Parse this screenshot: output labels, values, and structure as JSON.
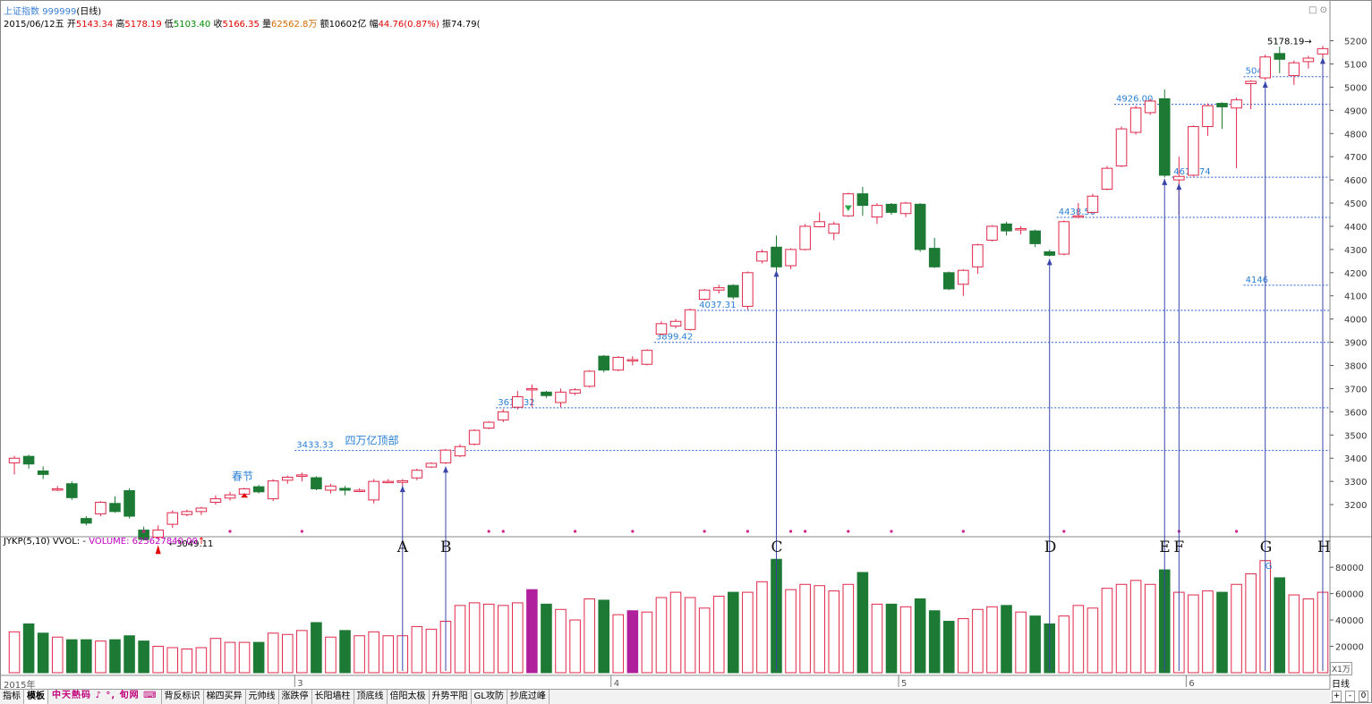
{
  "header": {
    "index_name": "上证指数",
    "index_code": "999999",
    "period_tag": "(日线)",
    "date": "2015/06/12五",
    "open_label": "开",
    "open": "5143.34",
    "high_label": "高",
    "high": "5178.19",
    "low_label": "低",
    "low": "5103.40",
    "close_label": "收",
    "close": "5166.35",
    "vol_label": "量",
    "vol": "62562.8万",
    "amount_label": "额",
    "amount": "10602亿",
    "amp_label": "幅",
    "amp": "44.76(0.87%)",
    "turnover_label": "振",
    "turnover": "74.79("
  },
  "indicator": {
    "name": "JYKP(5,10)",
    "vvol": "VVOL: -",
    "volume_label": "VOLUME:",
    "volume": "625627840.00",
    "unit": "X1万"
  },
  "bottom": {
    "year": "2015年",
    "brand": "中天熱码 ♪ °, 旬网 ⌨",
    "period": "日线",
    "ctrl_plus": "+",
    "ctrl_minus": "-",
    "ctrl_zero": "0",
    "tabs": [
      "指标",
      "模板",
      "",
      "背反标识",
      "梯四买异",
      "元帅线",
      "涨跌停",
      "长阳墙柱",
      "顶底线",
      "倍阳太极",
      "升势平阳",
      "GL攻防",
      "抄底过峰"
    ]
  },
  "chart_data": {
    "type": "candlestick",
    "ylim": [
      3100,
      5260
    ],
    "y_ticks": [
      3200,
      3300,
      3400,
      3500,
      3600,
      3700,
      3800,
      3900,
      4000,
      4100,
      4200,
      4300,
      4400,
      4500,
      4600,
      4700,
      4800,
      4900,
      5000,
      5100,
      5200
    ],
    "vol_ticks": [
      20000,
      40000,
      60000,
      80000
    ],
    "vol_ylim": [
      0,
      95000
    ],
    "month_labels": [
      "3",
      "4",
      "5",
      "6"
    ],
    "month_index": [
      20,
      42,
      62,
      82
    ],
    "candles": [
      {
        "o": 3380,
        "c": 3400,
        "h": 3410,
        "l": 3330
      },
      {
        "o": 3408,
        "c": 3375,
        "h": 3415,
        "l": 3355
      },
      {
        "o": 3345,
        "c": 3330,
        "h": 3365,
        "l": 3310
      },
      {
        "o": 3268,
        "c": 3268,
        "h": 3280,
        "l": 3258
      },
      {
        "o": 3290,
        "c": 3230,
        "h": 3300,
        "l": 3220
      },
      {
        "o": 3140,
        "c": 3120,
        "h": 3150,
        "l": 3110
      },
      {
        "o": 3160,
        "c": 3210,
        "h": 3215,
        "l": 3150
      },
      {
        "o": 3205,
        "c": 3170,
        "h": 3235,
        "l": 3165
      },
      {
        "o": 3260,
        "c": 3150,
        "h": 3270,
        "l": 3140
      },
      {
        "o": 3090,
        "c": 3050,
        "h": 3105,
        "l": 3045
      },
      {
        "o": 3060,
        "c": 3090,
        "h": 3110,
        "l": 3049
      },
      {
        "o": 3115,
        "c": 3165,
        "h": 3175,
        "l": 3100
      },
      {
        "o": 3157,
        "c": 3170,
        "h": 3178,
        "l": 3150
      },
      {
        "o": 3170,
        "c": 3185,
        "h": 3190,
        "l": 3155
      },
      {
        "o": 3210,
        "c": 3225,
        "h": 3240,
        "l": 3200
      },
      {
        "o": 3228,
        "c": 3242,
        "h": 3255,
        "l": 3218
      },
      {
        "o": 3245,
        "c": 3268,
        "h": 3272,
        "l": 3238
      },
      {
        "o": 3277,
        "c": 3255,
        "h": 3285,
        "l": 3248
      },
      {
        "o": 3225,
        "c": 3302,
        "h": 3310,
        "l": 3215
      },
      {
        "o": 3305,
        "c": 3318,
        "h": 3325,
        "l": 3290
      },
      {
        "o": 3322,
        "c": 3328,
        "h": 3338,
        "l": 3300
      },
      {
        "o": 3316,
        "c": 3268,
        "h": 3322,
        "l": 3262
      },
      {
        "o": 3262,
        "c": 3280,
        "h": 3290,
        "l": 3248
      },
      {
        "o": 3270,
        "c": 3262,
        "h": 3280,
        "l": 3240
      },
      {
        "o": 3260,
        "c": 3262,
        "h": 3270,
        "l": 3255
      },
      {
        "o": 3220,
        "c": 3300,
        "h": 3310,
        "l": 3205
      },
      {
        "o": 3298,
        "c": 3300,
        "h": 3310,
        "l": 3292
      },
      {
        "o": 3296,
        "c": 3303,
        "h": 3310,
        "l": 3280
      },
      {
        "o": 3315,
        "c": 3348,
        "h": 3355,
        "l": 3305
      },
      {
        "o": 3362,
        "c": 3378,
        "h": 3382,
        "l": 3358
      },
      {
        "o": 3380,
        "c": 3435,
        "h": 3440,
        "l": 3375
      },
      {
        "o": 3410,
        "c": 3450,
        "h": 3460,
        "l": 3405
      },
      {
        "o": 3460,
        "c": 3520,
        "h": 3525,
        "l": 3455
      },
      {
        "o": 3530,
        "c": 3555,
        "h": 3560,
        "l": 3525
      },
      {
        "o": 3565,
        "c": 3600,
        "h": 3612,
        "l": 3555
      },
      {
        "o": 3620,
        "c": 3665,
        "h": 3690,
        "l": 3610
      },
      {
        "o": 3700,
        "c": 3700,
        "h": 3718,
        "l": 3620
      },
      {
        "o": 3685,
        "c": 3670,
        "h": 3690,
        "l": 3660
      },
      {
        "o": 3640,
        "c": 3685,
        "h": 3700,
        "l": 3620
      },
      {
        "o": 3680,
        "c": 3695,
        "h": 3702,
        "l": 3672
      },
      {
        "o": 3710,
        "c": 3775,
        "h": 3780,
        "l": 3705
      },
      {
        "o": 3840,
        "c": 3780,
        "h": 3845,
        "l": 3770
      },
      {
        "o": 3780,
        "c": 3835,
        "h": 3840,
        "l": 3775
      },
      {
        "o": 3825,
        "c": 3825,
        "h": 3840,
        "l": 3800
      },
      {
        "o": 3805,
        "c": 3865,
        "h": 3870,
        "l": 3800
      },
      {
        "o": 3935,
        "c": 3980,
        "h": 3990,
        "l": 3930
      },
      {
        "o": 3970,
        "c": 3990,
        "h": 4000,
        "l": 3960
      },
      {
        "o": 3955,
        "c": 4040,
        "h": 4045,
        "l": 3950
      },
      {
        "o": 4085,
        "c": 4125,
        "h": 4130,
        "l": 4080
      },
      {
        "o": 4125,
        "c": 4135,
        "h": 4148,
        "l": 4110
      },
      {
        "o": 4145,
        "c": 4095,
        "h": 4150,
        "l": 4085
      },
      {
        "o": 4055,
        "c": 4200,
        "h": 4205,
        "l": 4040
      },
      {
        "o": 4250,
        "c": 4290,
        "h": 4300,
        "l": 4240
      },
      {
        "o": 4310,
        "c": 4225,
        "h": 4360,
        "l": 4210
      },
      {
        "o": 4230,
        "c": 4300,
        "h": 4305,
        "l": 4215
      },
      {
        "o": 4300,
        "c": 4400,
        "h": 4410,
        "l": 4295
      },
      {
        "o": 4398,
        "c": 4420,
        "h": 4460,
        "l": 4395
      },
      {
        "o": 4370,
        "c": 4410,
        "h": 4420,
        "l": 4340
      },
      {
        "o": 4445,
        "c": 4540,
        "h": 4545,
        "l": 4440
      },
      {
        "o": 4540,
        "c": 4490,
        "h": 4570,
        "l": 4445
      },
      {
        "o": 4440,
        "c": 4490,
        "h": 4500,
        "l": 4410
      },
      {
        "o": 4495,
        "c": 4460,
        "h": 4500,
        "l": 4450
      },
      {
        "o": 4455,
        "c": 4500,
        "h": 4505,
        "l": 4440
      },
      {
        "o": 4495,
        "c": 4300,
        "h": 4500,
        "l": 4290
      },
      {
        "o": 4305,
        "c": 4225,
        "h": 4350,
        "l": 4220
      },
      {
        "o": 4200,
        "c": 4130,
        "h": 4205,
        "l": 4125
      },
      {
        "o": 4150,
        "c": 4210,
        "h": 4215,
        "l": 4100
      },
      {
        "o": 4225,
        "c": 4320,
        "h": 4325,
        "l": 4195
      },
      {
        "o": 4340,
        "c": 4400,
        "h": 4405,
        "l": 4335
      },
      {
        "o": 4410,
        "c": 4380,
        "h": 4420,
        "l": 4360
      },
      {
        "o": 4385,
        "c": 4390,
        "h": 4400,
        "l": 4365
      },
      {
        "o": 4380,
        "c": 4325,
        "h": 4385,
        "l": 4310
      },
      {
        "o": 4290,
        "c": 4275,
        "h": 4300,
        "l": 4270
      },
      {
        "o": 4280,
        "c": 4420,
        "h": 4425,
        "l": 4275
      },
      {
        "o": 4440,
        "c": 4445,
        "h": 4500,
        "l": 4435
      },
      {
        "o": 4460,
        "c": 4530,
        "h": 4540,
        "l": 4455
      },
      {
        "o": 4560,
        "c": 4650,
        "h": 4660,
        "l": 4555
      },
      {
        "o": 4660,
        "c": 4820,
        "h": 4830,
        "l": 4655
      },
      {
        "o": 4805,
        "c": 4910,
        "h": 4920,
        "l": 4795
      },
      {
        "o": 4890,
        "c": 4940,
        "h": 4950,
        "l": 4880
      },
      {
        "o": 4950,
        "c": 4620,
        "h": 4990,
        "l": 4610
      },
      {
        "o": 4600,
        "c": 4615,
        "h": 4700,
        "l": 4450
      },
      {
        "o": 4620,
        "c": 4830,
        "h": 4835,
        "l": 4615
      },
      {
        "o": 4830,
        "c": 4920,
        "h": 4930,
        "l": 4790
      },
      {
        "o": 4930,
        "c": 4915,
        "h": 4935,
        "l": 4820
      },
      {
        "o": 4910,
        "c": 4945,
        "h": 4955,
        "l": 4650
      },
      {
        "o": 5015,
        "c": 5025,
        "h": 5030,
        "l": 4905
      },
      {
        "o": 5040,
        "c": 5130,
        "h": 5140,
        "l": 5030
      },
      {
        "o": 5145,
        "c": 5120,
        "h": 5175,
        "l": 5060
      },
      {
        "o": 5050,
        "c": 5105,
        "h": 5115,
        "l": 5010
      },
      {
        "o": 5110,
        "c": 5125,
        "h": 5135,
        "l": 5080
      },
      {
        "o": 5143,
        "c": 5166,
        "h": 5178,
        "l": 5103
      }
    ],
    "volumes": [
      31000,
      37000,
      30000,
      27000,
      25000,
      25000,
      24000,
      25000,
      28000,
      24000,
      20000,
      19000,
      18000,
      19000,
      26000,
      23000,
      23000,
      23000,
      30000,
      29000,
      32000,
      38000,
      27000,
      32000,
      28000,
      31000,
      28000,
      28000,
      35000,
      33000,
      39000,
      51000,
      53000,
      52000,
      51000,
      53000,
      63000,
      52000,
      48000,
      40000,
      56000,
      55000,
      44000,
      47000,
      46000,
      57000,
      61000,
      57000,
      49000,
      58000,
      61000,
      61000,
      69000,
      86000,
      63000,
      67000,
      66000,
      62000,
      67000,
      76000,
      52000,
      52000,
      50000,
      56000,
      47000,
      39000,
      41000,
      48000,
      50000,
      51000,
      46000,
      43000,
      37000,
      43000,
      51000,
      49000,
      64000,
      67000,
      70000,
      67000,
      78000,
      61000,
      59000,
      62000,
      61000,
      67000,
      75000,
      85000,
      72000,
      59000,
      56000,
      61000
    ],
    "purple_volume_index": [
      36,
      43
    ],
    "dashed_levels": [
      {
        "y": 3433.33,
        "label": "3433.33",
        "from": 20
      },
      {
        "y": 3617.32,
        "label": "3617.32",
        "from": 34
      },
      {
        "y": 3899.42,
        "label": "3899.42",
        "from": 45
      },
      {
        "y": 4037.31,
        "label": "4037.31",
        "from": 48
      },
      {
        "y": 4438.5,
        "label": "4438.50",
        "from": 73
      },
      {
        "y": 4611.74,
        "label": "4611.74",
        "from": 81
      },
      {
        "y": 4926.0,
        "label": "4926.00",
        "from": 77
      },
      {
        "y": 5045,
        "label": "5045",
        "from": 86
      },
      {
        "y": 4146,
        "label": "4146",
        "from": 86
      }
    ],
    "annotations": {
      "low_label": "3049.11",
      "high_label": "5178.19",
      "spring_festival": "春节",
      "four_trillion_top": "四万亿顶部",
      "g_small": "G"
    },
    "markers": [
      {
        "label": "A",
        "index": 27
      },
      {
        "label": "B",
        "index": 30
      },
      {
        "label": "C",
        "index": 53
      },
      {
        "label": "D",
        "index": 72
      },
      {
        "label": "E",
        "index": 80
      },
      {
        "label": "F",
        "index": 81
      },
      {
        "label": "G",
        "index": 87
      },
      {
        "label": "H",
        "index": 91
      }
    ],
    "pink_dot_index": [
      9,
      15,
      20,
      33,
      34,
      39,
      43,
      48,
      51,
      54,
      55,
      58,
      61,
      66,
      73,
      81,
      85
    ]
  }
}
